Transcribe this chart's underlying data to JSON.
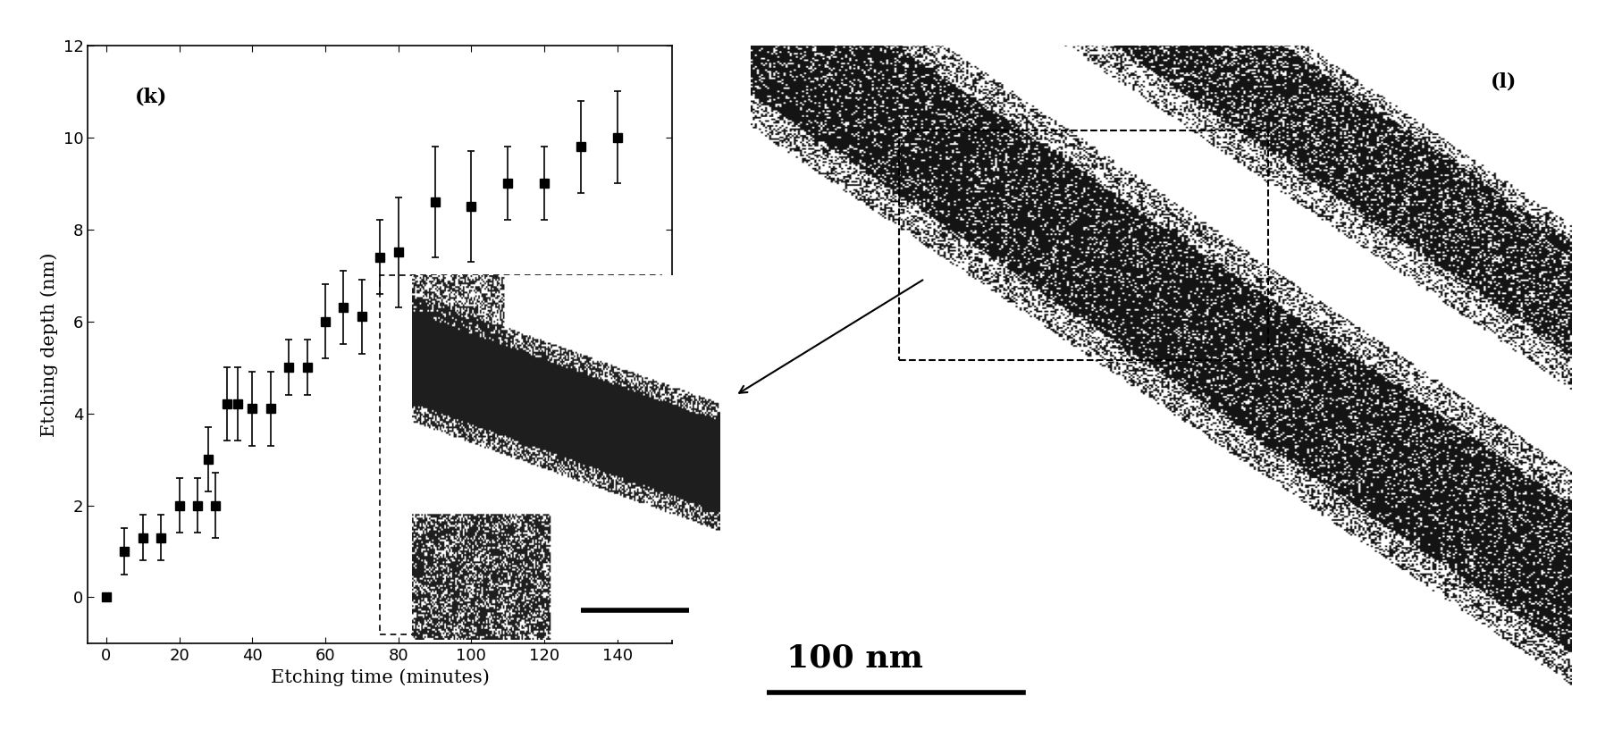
{
  "x": [
    0,
    5,
    10,
    15,
    20,
    25,
    28,
    30,
    33,
    36,
    40,
    45,
    50,
    55,
    60,
    65,
    70,
    75,
    80,
    90,
    100,
    110,
    120,
    130,
    140
  ],
  "y": [
    0,
    1.0,
    1.3,
    1.3,
    2.0,
    2.0,
    3.0,
    2.0,
    4.2,
    4.2,
    4.1,
    4.1,
    5.0,
    5.0,
    6.0,
    6.3,
    6.1,
    7.4,
    7.5,
    8.6,
    8.5,
    9.0,
    9.0,
    9.8,
    10.0
  ],
  "yerr": [
    0,
    0.5,
    0.5,
    0.5,
    0.6,
    0.6,
    0.7,
    0.7,
    0.8,
    0.8,
    0.8,
    0.8,
    0.6,
    0.6,
    0.8,
    0.8,
    0.8,
    0.8,
    1.2,
    1.2,
    1.2,
    0.8,
    0.8,
    1.0,
    1.0
  ],
  "xlabel": "Etching time (minutes)",
  "ylabel": "Etching depth (nm)",
  "panel_label": "(k)",
  "panel_label2": "(l)",
  "xlim": [
    -5,
    155
  ],
  "ylim": [
    -1,
    12
  ],
  "xticks": [
    0,
    20,
    40,
    60,
    80,
    100,
    120,
    140
  ],
  "yticks": [
    0,
    2,
    4,
    6,
    8,
    10,
    12
  ],
  "scale_bar_text": "100 nm",
  "bg_color": "#ffffff",
  "marker_color": "#000000",
  "marker_size": 7
}
